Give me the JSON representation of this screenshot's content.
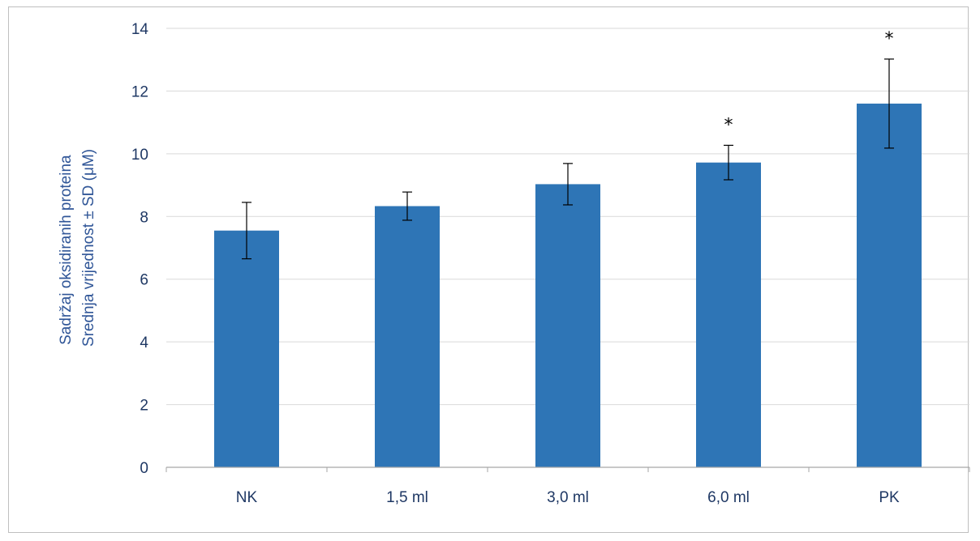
{
  "chart_data": {
    "type": "bar",
    "categories": [
      "NK",
      "1,5 ml",
      "3,0 ml",
      "6,0 ml",
      "PK"
    ],
    "values": [
      7.55,
      8.33,
      9.03,
      9.72,
      11.6
    ],
    "errors": [
      0.9,
      0.45,
      0.66,
      0.55,
      1.42
    ],
    "annotations": [
      "",
      "",
      "",
      "*",
      "*"
    ],
    "title": "",
    "xlabel": "",
    "ylabel_lines": [
      "Sadržaj oksidiranih proteina",
      "Srednja vrijednost ± SD (μM)"
    ],
    "ylim": [
      0,
      14
    ],
    "yticks": [
      0,
      2,
      4,
      6,
      8,
      10,
      12,
      14
    ],
    "grid": true,
    "legend": "none",
    "bar_color": "#2e75b6",
    "grid_color": "#d9d9d9",
    "axis_color": "#a6a6a6",
    "tick_label_color": "#1f3864"
  }
}
